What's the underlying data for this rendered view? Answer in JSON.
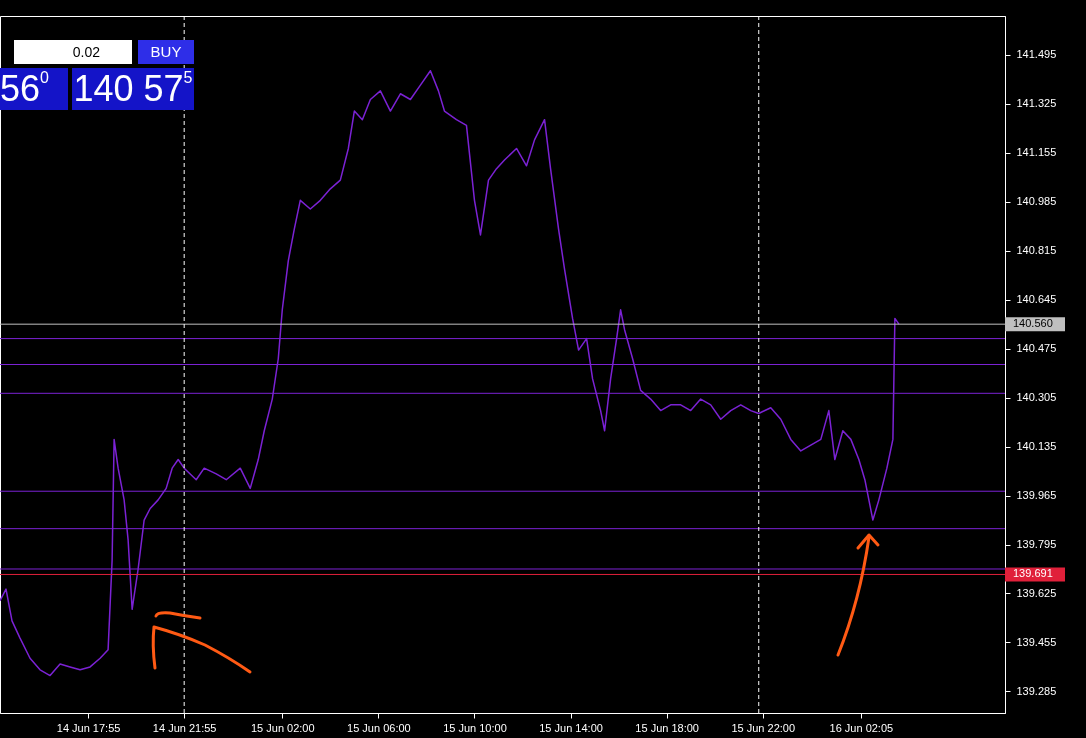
{
  "chart_data": {
    "type": "line",
    "annotations": [
      "0.02",
      "BUY",
      "56$^{0}$",
      "140 57$^{5}$"
    ],
    "x": [
      "--06-14T14:15",
      "--06-14T14:30",
      "--06-14T14:45",
      "--06-14T15:05",
      "--06-14T15:30",
      "--06-14T15:55",
      "--06-14T16:20",
      "--06-14T16:45",
      "--06-14T17:10",
      "--06-14T17:35",
      "--06-14T18:00",
      "--06-14T18:25",
      "--06-14T18:45",
      "--06-14T18:55",
      "--06-14T19:00",
      "--06-14T19:10",
      "--06-14T19:25",
      "--06-14T19:35",
      "--06-14T19:45",
      "--06-14T20:00",
      "--06-14T20:15",
      "--06-14T20:30",
      "--06-14T20:50",
      "--06-14T21:10",
      "--06-14T21:25",
      "--06-14T21:40",
      "--06-14T21:55",
      "--06-14T22:25",
      "--06-14T22:45",
      "--06-14T23:15",
      "--06-14T23:40",
      "--06-15T00:15",
      "--06-15T00:40",
      "--06-15T01:00",
      "--06-15T01:15",
      "--06-15T01:35",
      "--06-15T01:50",
      "--06-15T02:00",
      "--06-15T02:15",
      "--06-15T02:30",
      "--06-15T02:45",
      "--06-15T03:10",
      "--06-15T03:35",
      "--06-15T04:00",
      "--06-15T04:25",
      "--06-15T04:45",
      "--06-15T05:00",
      "--06-15T05:20",
      "--06-15T05:40",
      "--06-15T06:05",
      "--06-15T06:30",
      "--06-15T06:55",
      "--06-15T07:20",
      "--06-15T07:45",
      "--06-15T08:10",
      "--06-15T08:30",
      "--06-15T08:45",
      "--06-15T09:15",
      "--06-15T09:40",
      "--06-15T10:00",
      "--06-15T10:15",
      "--06-15T10:35",
      "--06-15T10:55",
      "--06-15T11:15",
      "--06-15T11:45",
      "--06-15T12:10",
      "--06-15T12:30",
      "--06-15T12:55",
      "--06-15T13:10",
      "--06-15T13:30",
      "--06-15T13:45",
      "--06-15T14:05",
      "--06-15T14:20",
      "--06-15T14:40",
      "--06-15T14:55",
      "--06-15T15:15",
      "--06-15T15:25",
      "--06-15T15:40",
      "--06-15T15:55",
      "--06-15T16:05",
      "--06-15T16:15",
      "--06-15T16:35",
      "--06-15T16:55",
      "--06-15T17:20",
      "--06-15T17:45",
      "--06-15T18:10",
      "--06-15T18:35",
      "--06-15T19:00",
      "--06-15T19:25",
      "--06-15T19:50",
      "--06-15T20:15",
      "--06-15T20:40",
      "--06-15T21:05",
      "--06-15T21:30",
      "--06-15T21:50",
      "--06-15T22:20",
      "--06-15T22:45",
      "--06-15T23:10",
      "--06-15T23:35",
      "--06-16T00:00",
      "--06-16T00:25",
      "--06-16T00:45",
      "--06-16T01:00",
      "--06-16T01:20",
      "--06-16T01:40",
      "--06-16T02:00",
      "--06-16T02:15",
      "--06-16T02:35",
      "--06-16T02:50",
      "--06-16T03:10",
      "--06-16T03:25",
      "--06-16T03:30",
      "--06-16T03:40"
    ],
    "series": [
      {
        "color": "#7b22d4",
        "values": [
          139.6,
          139.64,
          139.53,
          139.47,
          139.4,
          139.36,
          139.34,
          139.38,
          139.37,
          139.36,
          139.37,
          139.4,
          139.43,
          139.74,
          140.16,
          140.06,
          139.95,
          139.81,
          139.57,
          139.71,
          139.88,
          139.92,
          139.95,
          139.99,
          140.06,
          140.09,
          140.06,
          140.02,
          140.06,
          140.04,
          140.02,
          140.06,
          139.99,
          140.09,
          140.19,
          140.3,
          140.44,
          140.61,
          140.78,
          140.89,
          140.99,
          140.96,
          140.99,
          141.03,
          141.06,
          141.17,
          141.3,
          141.27,
          141.34,
          141.37,
          141.3,
          141.36,
          141.34,
          141.39,
          141.44,
          141.37,
          141.3,
          141.27,
          141.25,
          140.99,
          140.87,
          141.06,
          141.1,
          141.13,
          141.17,
          141.11,
          141.2,
          141.27,
          141.1,
          140.89,
          140.75,
          140.58,
          140.47,
          140.51,
          140.37,
          140.26,
          140.19,
          140.37,
          140.51,
          140.61,
          140.54,
          140.44,
          140.33,
          140.3,
          140.26,
          140.28,
          140.28,
          140.26,
          140.3,
          140.28,
          140.23,
          140.26,
          140.28,
          140.26,
          140.25,
          140.27,
          140.23,
          140.16,
          140.12,
          140.14,
          140.16,
          140.26,
          140.09,
          140.19,
          140.16,
          140.09,
          140.02,
          139.88,
          139.95,
          140.06,
          140.16,
          140.58,
          140.56
        ]
      }
    ],
    "xlim": [
      "--06-14T14:15",
      "--06-16T08:05"
    ],
    "xticks": [
      {
        "value": "--06-14T17:55",
        "label": "14 Jun 17:55"
      },
      {
        "value": "--06-14T21:55",
        "label": "14 Jun 21:55"
      },
      {
        "value": "--06-15T02:00",
        "label": "15 Jun 02:00"
      },
      {
        "value": "--06-15T06:00",
        "label": "15 Jun 06:00"
      },
      {
        "value": "--06-15T10:00",
        "label": "15 Jun 10:00"
      },
      {
        "value": "--06-15T14:00",
        "label": "15 Jun 14:00"
      },
      {
        "value": "--06-15T18:00",
        "label": "15 Jun 18:00"
      },
      {
        "value": "--06-15T22:00",
        "label": "15 Jun 22:00"
      },
      {
        "value": "--06-16T02:05",
        "label": "16 Jun 02:05"
      }
    ],
    "ylim": [
      139.21,
      141.63
    ],
    "yticks": [
      139.285,
      139.455,
      139.625,
      139.795,
      139.965,
      140.135,
      140.305,
      140.475,
      140.645,
      140.815,
      140.985,
      141.155,
      141.325,
      141.495
    ],
    "ref_lines": [
      {
        "axis": "y",
        "value": 140.56,
        "label": "140.560",
        "color": "#c0c0c0"
      },
      {
        "axis": "y",
        "value": 139.691,
        "label": "139.691",
        "color": "#e0203a"
      },
      {
        "axis": "y",
        "value": 140.51,
        "color": "#7b22d4"
      },
      {
        "axis": "y",
        "value": 140.42,
        "color": "#7b22d4"
      },
      {
        "axis": "y",
        "value": 140.32,
        "color": "#7b22d4"
      },
      {
        "axis": "y",
        "value": 139.98,
        "color": "#7b22d4"
      },
      {
        "axis": "y",
        "value": 139.85,
        "color": "#7b22d4"
      },
      {
        "axis": "y",
        "value": 139.71,
        "color": "#7b22d4"
      },
      {
        "axis": "x",
        "value": "--06-14T21:55",
        "color": "#ffffff",
        "line_style": "dashed"
      },
      {
        "axis": "x",
        "value": "--06-15T21:50",
        "color": "#ffffff",
        "line_style": "dashed"
      }
    ],
    "grid": false,
    "marker": "none",
    "line_style": "solid"
  }
}
